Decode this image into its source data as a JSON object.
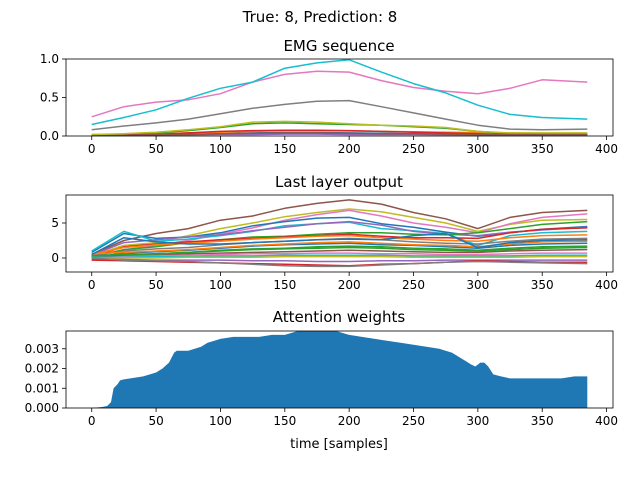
{
  "figure": {
    "suptitle": "True: 8, Prediction: 8"
  },
  "chart_data": [
    {
      "type": "line",
      "title": "EMG sequence",
      "xlabel": "",
      "ylabel": "",
      "xlim": [
        -20,
        405
      ],
      "ylim": [
        0,
        1.0
      ],
      "xticks": [
        0,
        50,
        100,
        150,
        200,
        250,
        300,
        350,
        400
      ],
      "yticks": [
        0.0,
        0.5,
        1.0
      ],
      "ytick_labels": [
        "0.0",
        "0.5",
        "1.0"
      ],
      "x": [
        0,
        25,
        50,
        75,
        100,
        125,
        150,
        175,
        200,
        225,
        250,
        275,
        300,
        325,
        350,
        385
      ],
      "series": [
        {
          "color": "#1f77b4",
          "values": [
            0.01,
            0.015,
            0.02,
            0.025,
            0.03,
            0.04,
            0.045,
            0.045,
            0.04,
            0.035,
            0.03,
            0.025,
            0.02,
            0.015,
            0.015,
            0.015
          ]
        },
        {
          "color": "#ff7f0e",
          "values": [
            0.02,
            0.025,
            0.03,
            0.04,
            0.05,
            0.06,
            0.07,
            0.07,
            0.065,
            0.06,
            0.055,
            0.05,
            0.045,
            0.04,
            0.035,
            0.035
          ]
        },
        {
          "color": "#2ca02c",
          "values": [
            0.01,
            0.02,
            0.04,
            0.07,
            0.11,
            0.16,
            0.17,
            0.16,
            0.15,
            0.14,
            0.12,
            0.1,
            0.06,
            0.03,
            0.02,
            0.02
          ]
        },
        {
          "color": "#d62728",
          "values": [
            0.01,
            0.015,
            0.02,
            0.04,
            0.06,
            0.07,
            0.075,
            0.075,
            0.07,
            0.06,
            0.05,
            0.04,
            0.03,
            0.02,
            0.02,
            0.02
          ]
        },
        {
          "color": "#9467bd",
          "values": [
            0.005,
            0.01,
            0.01,
            0.015,
            0.02,
            0.02,
            0.025,
            0.025,
            0.02,
            0.02,
            0.02,
            0.015,
            0.01,
            0.01,
            0.01,
            0.01
          ]
        },
        {
          "color": "#8c564b",
          "values": [
            0.01,
            0.01,
            0.015,
            0.02,
            0.03,
            0.035,
            0.04,
            0.04,
            0.035,
            0.03,
            0.03,
            0.025,
            0.02,
            0.02,
            0.02,
            0.02
          ]
        },
        {
          "color": "#e377c2",
          "values": [
            0.25,
            0.38,
            0.44,
            0.47,
            0.55,
            0.7,
            0.8,
            0.84,
            0.83,
            0.72,
            0.63,
            0.58,
            0.55,
            0.62,
            0.73,
            0.7
          ]
        },
        {
          "color": "#7f7f7f",
          "values": [
            0.08,
            0.13,
            0.17,
            0.22,
            0.29,
            0.36,
            0.41,
            0.45,
            0.46,
            0.38,
            0.3,
            0.22,
            0.14,
            0.09,
            0.08,
            0.09
          ]
        },
        {
          "color": "#bcbd22",
          "values": [
            0.02,
            0.03,
            0.05,
            0.08,
            0.12,
            0.18,
            0.19,
            0.18,
            0.16,
            0.14,
            0.13,
            0.11,
            0.06,
            0.04,
            0.04,
            0.04
          ]
        },
        {
          "color": "#17becf",
          "values": [
            0.15,
            0.24,
            0.34,
            0.49,
            0.62,
            0.7,
            0.88,
            0.95,
            0.99,
            0.83,
            0.68,
            0.56,
            0.4,
            0.28,
            0.24,
            0.22
          ]
        }
      ]
    },
    {
      "type": "line",
      "title": "Last layer output",
      "xlabel": "",
      "ylabel": "",
      "xlim": [
        -20,
        405
      ],
      "ylim": [
        -2,
        9
      ],
      "xticks": [
        0,
        50,
        100,
        150,
        200,
        250,
        300,
        350,
        400
      ],
      "yticks": [
        0,
        5
      ],
      "ytick_labels": [
        "0",
        "5"
      ],
      "x": [
        0,
        25,
        50,
        75,
        100,
        125,
        150,
        175,
        200,
        225,
        250,
        275,
        300,
        325,
        350,
        385
      ],
      "series": [
        {
          "color": "#8c564b",
          "values": [
            0.5,
            2.5,
            3.5,
            4.2,
            5.4,
            6.0,
            7.1,
            7.8,
            8.3,
            7.7,
            6.5,
            5.6,
            4.2,
            5.8,
            6.5,
            6.8
          ]
        },
        {
          "color": "#bcbd22",
          "values": [
            0.3,
            1.8,
            2.2,
            3.2,
            4.2,
            5.0,
            5.9,
            6.5,
            7.0,
            6.6,
            5.8,
            5.0,
            3.8,
            4.8,
            5.4,
            5.5
          ]
        },
        {
          "color": "#e377c2",
          "values": [
            0.2,
            1.2,
            1.8,
            2.5,
            3.4,
            4.3,
            5.4,
            6.2,
            6.8,
            6.0,
            5.0,
            4.4,
            3.6,
            4.9,
            5.8,
            6.3
          ]
        },
        {
          "color": "#1f77b4",
          "values": [
            0.8,
            3.5,
            2.8,
            3.0,
            3.6,
            4.6,
            5.2,
            5.7,
            5.8,
            4.9,
            4.4,
            3.7,
            3.1,
            3.6,
            4.1,
            4.5
          ]
        },
        {
          "color": "#17becf",
          "values": [
            1.0,
            3.8,
            2.4,
            2.7,
            3.2,
            3.8,
            4.6,
            4.9,
            5.1,
            4.2,
            3.9,
            3.5,
            1.8,
            3.2,
            3.6,
            3.8
          ]
        },
        {
          "color": "#9467bd",
          "values": [
            0.4,
            2.2,
            2.6,
            3.0,
            3.3,
            3.9,
            4.4,
            4.9,
            5.2,
            4.7,
            3.8,
            3.4,
            3.2,
            3.7,
            4.0,
            4.4
          ]
        },
        {
          "color": "#2ca02c",
          "values": [
            0.1,
            1.2,
            1.6,
            2.2,
            2.6,
            3.0,
            3.1,
            3.4,
            3.6,
            3.6,
            3.4,
            3.3,
            3.6,
            4.2,
            4.8,
            5.2
          ]
        },
        {
          "color": "#d62728",
          "values": [
            0.2,
            1.6,
            2.0,
            2.3,
            2.6,
            2.8,
            3.0,
            3.2,
            3.4,
            3.1,
            2.9,
            2.9,
            2.8,
            3.6,
            4.1,
            4.3
          ]
        },
        {
          "color": "#ff7f0e",
          "values": [
            0.5,
            1.5,
            1.9,
            2.1,
            2.4,
            2.7,
            2.9,
            3.1,
            3.2,
            2.9,
            2.7,
            2.5,
            2.4,
            2.9,
            3.2,
            3.3
          ]
        },
        {
          "color": "#7f7f7f",
          "values": [
            0.3,
            1.0,
            1.3,
            1.5,
            1.9,
            2.2,
            2.4,
            2.6,
            2.8,
            2.6,
            2.3,
            2.1,
            2.0,
            2.4,
            2.7,
            2.8
          ]
        },
        {
          "color": "#1f77b4",
          "values": [
            0.1,
            0.7,
            0.9,
            1.1,
            1.4,
            1.7,
            1.9,
            2.0,
            2.1,
            1.9,
            1.8,
            1.6,
            1.4,
            1.8,
            2.0,
            2.1
          ]
        },
        {
          "color": "#2ca02c",
          "values": [
            0.0,
            0.4,
            0.6,
            0.8,
            1.1,
            1.3,
            1.4,
            1.6,
            1.7,
            1.6,
            1.4,
            1.3,
            1.1,
            1.4,
            1.6,
            1.7
          ]
        },
        {
          "color": "#8c564b",
          "values": [
            0.2,
            0.3,
            0.4,
            0.6,
            0.7,
            0.8,
            0.9,
            1.0,
            1.1,
            1.0,
            0.9,
            0.8,
            0.8,
            1.0,
            1.1,
            1.2
          ]
        },
        {
          "color": "#e377c2",
          "values": [
            0.0,
            0.2,
            0.3,
            0.4,
            0.5,
            0.6,
            0.6,
            0.7,
            0.7,
            0.6,
            0.6,
            0.5,
            0.5,
            0.6,
            0.7,
            0.7
          ]
        },
        {
          "color": "#17becf",
          "values": [
            0.1,
            0.1,
            0.2,
            0.2,
            0.3,
            0.3,
            0.4,
            0.4,
            0.4,
            0.4,
            0.3,
            0.3,
            0.3,
            0.3,
            0.4,
            0.4
          ]
        },
        {
          "color": "#bcbd22",
          "values": [
            -0.1,
            0.0,
            0.0,
            0.1,
            0.1,
            0.1,
            0.2,
            0.2,
            0.2,
            0.2,
            0.1,
            0.1,
            0.1,
            0.1,
            0.2,
            0.2
          ]
        },
        {
          "color": "#9467bd",
          "values": [
            -0.2,
            -0.2,
            -0.3,
            -0.3,
            -0.3,
            -0.4,
            -0.4,
            -0.5,
            -0.5,
            -0.4,
            -0.4,
            -0.3,
            -0.3,
            -0.3,
            -0.3,
            -0.3
          ]
        },
        {
          "color": "#d62728",
          "values": [
            -0.3,
            -0.4,
            -0.5,
            -0.6,
            -0.7,
            -0.8,
            -0.9,
            -1.0,
            -1.1,
            -0.9,
            -0.8,
            -0.6,
            -0.4,
            -0.5,
            -0.6,
            -0.6
          ]
        },
        {
          "color": "#7f7f7f",
          "values": [
            0.0,
            -0.3,
            -0.4,
            -0.5,
            -0.7,
            -0.9,
            -1.1,
            -1.2,
            -1.2,
            -1.0,
            -0.8,
            -0.6,
            -0.5,
            -0.6,
            -0.7,
            -0.8
          ]
        },
        {
          "color": "#ff7f0e",
          "values": [
            0.6,
            0.8,
            1.0,
            1.2,
            1.5,
            1.8,
            2.0,
            2.2,
            2.3,
            2.1,
            1.9,
            1.8,
            1.6,
            2.0,
            2.3,
            2.4
          ]
        },
        {
          "color": "#2ca02c",
          "values": [
            0.3,
            0.5,
            0.6,
            0.8,
            1.0,
            1.2,
            1.3,
            1.4,
            1.5,
            1.4,
            1.2,
            1.1,
            1.0,
            1.2,
            1.4,
            1.5
          ]
        },
        {
          "color": "#1f77b4",
          "values": [
            0.5,
            2.9,
            2.3,
            2.0,
            2.0,
            2.2,
            2.4,
            2.6,
            2.7,
            2.6,
            3.2,
            3.5,
            1.5,
            2.2,
            2.5,
            2.6
          ]
        }
      ]
    },
    {
      "type": "area",
      "title": "Attention weights",
      "xlabel": "time [samples]",
      "ylabel": "",
      "xlim": [
        -20,
        405
      ],
      "ylim": [
        0,
        0.0039
      ],
      "xticks": [
        0,
        50,
        100,
        150,
        200,
        250,
        300,
        350,
        400
      ],
      "yticks": [
        0.0,
        0.001,
        0.002,
        0.003
      ],
      "ytick_labels": [
        "0.000",
        "0.001",
        "0.002",
        "0.003"
      ],
      "color": "#1f77b4",
      "x": [
        0,
        8,
        12,
        15,
        17,
        20,
        22,
        25,
        30,
        40,
        50,
        55,
        60,
        64,
        66,
        70,
        75,
        80,
        85,
        90,
        95,
        100,
        110,
        120,
        130,
        140,
        150,
        155,
        160,
        170,
        180,
        190,
        195,
        200,
        210,
        220,
        230,
        240,
        250,
        260,
        270,
        280,
        285,
        290,
        295,
        298,
        302,
        305,
        308,
        312,
        318,
        325,
        335,
        345,
        355,
        365,
        375,
        385
      ],
      "values": [
        0.0,
        5e-05,
        0.0001,
        0.0003,
        0.001,
        0.0012,
        0.0014,
        0.00145,
        0.0015,
        0.0016,
        0.0018,
        0.002,
        0.0023,
        0.0028,
        0.0029,
        0.0029,
        0.0029,
        0.003,
        0.0031,
        0.0033,
        0.0034,
        0.0035,
        0.0036,
        0.0036,
        0.0036,
        0.0037,
        0.0037,
        0.0038,
        0.0039,
        0.0039,
        0.0039,
        0.0039,
        0.0038,
        0.0037,
        0.0036,
        0.0035,
        0.0034,
        0.0033,
        0.0032,
        0.0031,
        0.003,
        0.0028,
        0.0026,
        0.0024,
        0.0022,
        0.0021,
        0.0023,
        0.0023,
        0.0021,
        0.0017,
        0.0016,
        0.0015,
        0.0015,
        0.0015,
        0.0015,
        0.0015,
        0.0016,
        0.0016
      ]
    }
  ]
}
